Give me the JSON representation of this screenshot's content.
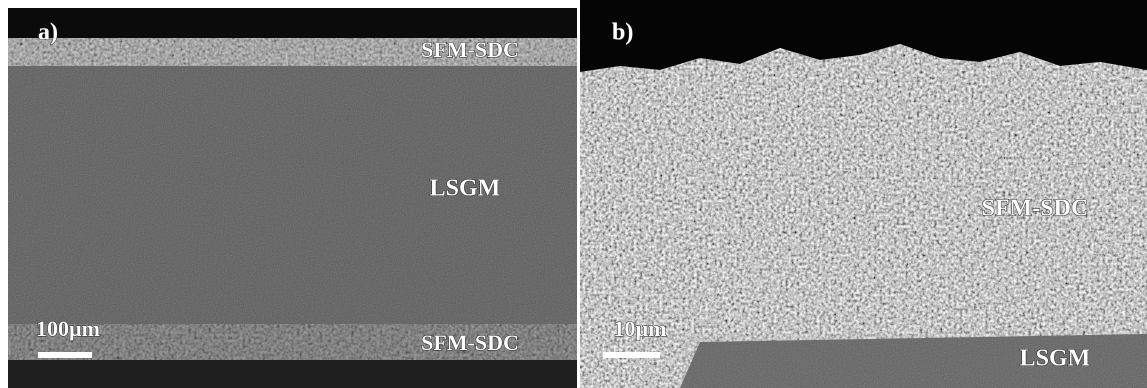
{
  "panels": [
    {
      "label": "a)",
      "layers": [
        "SFM-SDC",
        "LSGM",
        "SFM-SDC"
      ],
      "scale_bar": "100µm"
    },
    {
      "label": "b)",
      "layers": [
        "SFM-SDC",
        "LSGM"
      ],
      "scale_bar": "10µm"
    }
  ]
}
